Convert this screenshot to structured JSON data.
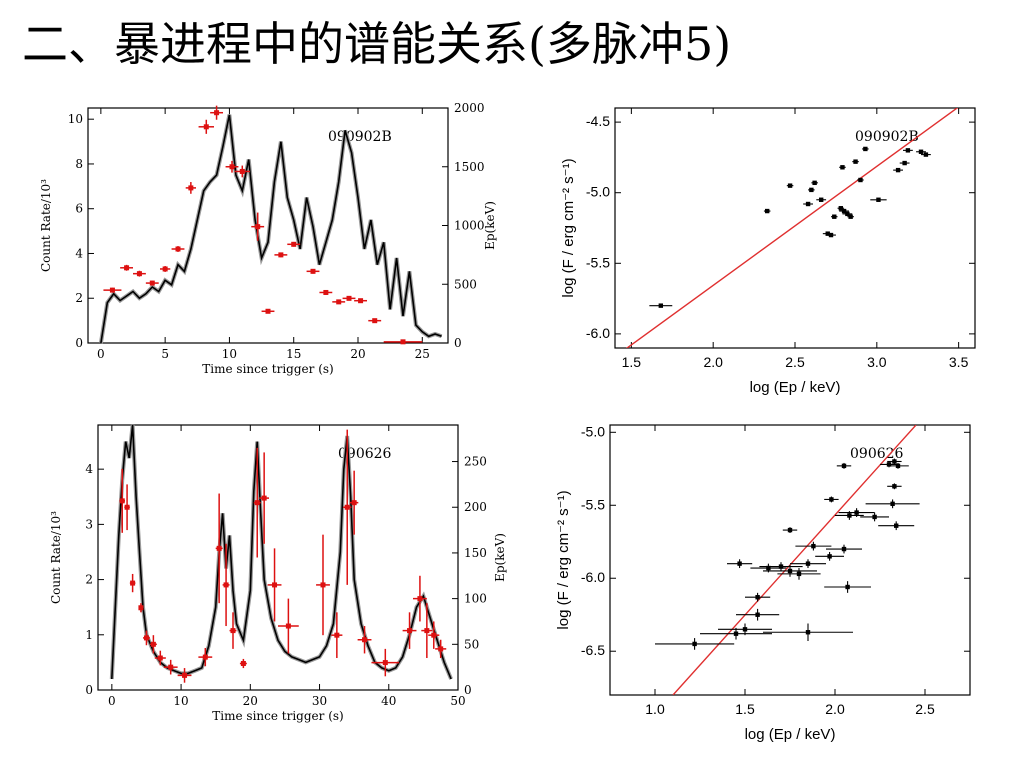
{
  "slide": {
    "title": "二、暴进程中的谱能关系(多脉冲5)"
  },
  "chart_data": [
    {
      "type": "line",
      "annotation": "090902B",
      "xlabel": "Time since trigger (s)",
      "ylabel": "Count Rate/10³",
      "y2label": "Ep(keV)",
      "xlim": [
        -1,
        27
      ],
      "ylim": [
        0,
        10.5
      ],
      "y2lim": [
        0,
        2000
      ],
      "xticks": [
        0,
        5,
        10,
        15,
        20,
        25
      ],
      "yticks": [
        0,
        2,
        4,
        6,
        8,
        10
      ],
      "y2ticks": [
        0,
        500,
        1000,
        1500,
        2000
      ],
      "lightcurve": {
        "t": [
          0,
          0.5,
          1,
          1.5,
          2,
          2.5,
          3,
          3.5,
          4,
          4.5,
          5,
          5.5,
          6,
          6.5,
          7,
          7.5,
          8,
          8.5,
          9,
          9.5,
          10,
          10.5,
          11,
          11.5,
          12,
          12.5,
          13,
          13.5,
          14,
          14.5,
          15,
          15.5,
          16,
          16.5,
          17,
          17.5,
          18,
          18.5,
          19,
          19.5,
          20,
          20.5,
          21,
          21.5,
          22,
          22.5,
          23,
          23.5,
          24,
          24.5,
          25,
          25.5,
          26,
          26.5
        ],
        "rate": [
          0,
          1.8,
          2.2,
          1.9,
          2.1,
          2.3,
          2,
          2.2,
          2.5,
          2.3,
          2.8,
          2.6,
          3.5,
          3.2,
          4.2,
          5.5,
          6.8,
          7.2,
          7.5,
          8.8,
          10.2,
          7.5,
          6.8,
          8.2,
          5.5,
          3.8,
          4.5,
          7.2,
          9,
          6.5,
          5.5,
          4.2,
          6.5,
          5.2,
          3.5,
          4.5,
          5.5,
          7.2,
          9.5,
          8.5,
          6.5,
          4.2,
          5.5,
          3.5,
          4.5,
          1.5,
          3.8,
          1.2,
          3.2,
          0.8,
          0.5,
          0.3,
          0.4,
          0.3
        ]
      },
      "ep_points": [
        {
          "t": 0.9,
          "ep": 450,
          "terr": 0.7,
          "eerr": 20
        },
        {
          "t": 2.0,
          "ep": 640,
          "terr": 0.5,
          "eerr": 25
        },
        {
          "t": 3.0,
          "ep": 590,
          "terr": 0.5,
          "eerr": 25
        },
        {
          "t": 4.0,
          "ep": 510,
          "terr": 0.5,
          "eerr": 20
        },
        {
          "t": 5.0,
          "ep": 630,
          "terr": 0.4,
          "eerr": 25
        },
        {
          "t": 6.0,
          "ep": 800,
          "terr": 0.5,
          "eerr": 25
        },
        {
          "t": 7.0,
          "ep": 1320,
          "terr": 0.4,
          "eerr": 50
        },
        {
          "t": 8.2,
          "ep": 1840,
          "terr": 0.6,
          "eerr": 60
        },
        {
          "t": 9.0,
          "ep": 1960,
          "terr": 0.5,
          "eerr": 60
        },
        {
          "t": 10.2,
          "ep": 1500,
          "terr": 0.5,
          "eerr": 50
        },
        {
          "t": 11.0,
          "ep": 1460,
          "terr": 0.6,
          "eerr": 50
        },
        {
          "t": 12.2,
          "ep": 990,
          "terr": 0.5,
          "eerr": 120
        },
        {
          "t": 13.0,
          "ep": 270,
          "terr": 0.5,
          "eerr": 15
        },
        {
          "t": 14.0,
          "ep": 750,
          "terr": 0.5,
          "eerr": 20
        },
        {
          "t": 15.0,
          "ep": 840,
          "terr": 0.5,
          "eerr": 20
        },
        {
          "t": 16.5,
          "ep": 610,
          "terr": 0.5,
          "eerr": 20
        },
        {
          "t": 17.5,
          "ep": 430,
          "terr": 0.5,
          "eerr": 20
        },
        {
          "t": 18.5,
          "ep": 350,
          "terr": 0.5,
          "eerr": 15
        },
        {
          "t": 19.3,
          "ep": 380,
          "terr": 0.5,
          "eerr": 15
        },
        {
          "t": 20.2,
          "ep": 360,
          "terr": 0.5,
          "eerr": 15
        },
        {
          "t": 21.3,
          "ep": 190,
          "terr": 0.5,
          "eerr": 10
        },
        {
          "t": 23.5,
          "ep": 10,
          "terr": 1.5,
          "eerr": 5
        }
      ]
    },
    {
      "type": "scatter",
      "annotation": "090902B",
      "xlabel": "log (Ep / keV)",
      "ylabel": "log (F / erg cm⁻² s⁻¹)",
      "xlim": [
        1.4,
        3.6
      ],
      "ylim": [
        -6.1,
        -4.4
      ],
      "xticks": [
        1.5,
        2.0,
        2.5,
        3.0,
        3.5
      ],
      "yticks": [
        -6.0,
        -5.5,
        -5.0,
        -4.5
      ],
      "fit_line": {
        "x": [
          1.45,
          3.55
        ],
        "y": [
          -6.12,
          -4.35
        ]
      },
      "points": [
        {
          "x": 1.68,
          "y": -5.8,
          "xerr": 0.07,
          "yerr": 0.01
        },
        {
          "x": 2.33,
          "y": -5.13,
          "xerr": 0.02,
          "yerr": 0.01
        },
        {
          "x": 2.47,
          "y": -4.95,
          "xerr": 0.02,
          "yerr": 0.01
        },
        {
          "x": 2.58,
          "y": -5.08,
          "xerr": 0.03,
          "yerr": 0.01
        },
        {
          "x": 2.6,
          "y": -4.98,
          "xerr": 0.02,
          "yerr": 0.01
        },
        {
          "x": 2.62,
          "y": -4.93,
          "xerr": 0.02,
          "yerr": 0.01
        },
        {
          "x": 2.66,
          "y": -5.05,
          "xerr": 0.03,
          "yerr": 0.01
        },
        {
          "x": 2.7,
          "y": -5.29,
          "xerr": 0.03,
          "yerr": 0.01
        },
        {
          "x": 2.72,
          "y": -5.3,
          "xerr": 0.03,
          "yerr": 0.01
        },
        {
          "x": 2.74,
          "y": -5.17,
          "xerr": 0.02,
          "yerr": 0.01
        },
        {
          "x": 2.78,
          "y": -5.11,
          "xerr": 0.02,
          "yerr": 0.01
        },
        {
          "x": 2.8,
          "y": -5.13,
          "xerr": 0.03,
          "yerr": 0.01
        },
        {
          "x": 2.82,
          "y": -5.15,
          "xerr": 0.03,
          "yerr": 0.01
        },
        {
          "x": 2.84,
          "y": -5.17,
          "xerr": 0.02,
          "yerr": 0.01
        },
        {
          "x": 2.79,
          "y": -4.82,
          "xerr": 0.02,
          "yerr": 0.01
        },
        {
          "x": 2.87,
          "y": -4.78,
          "xerr": 0.02,
          "yerr": 0.01
        },
        {
          "x": 2.9,
          "y": -4.91,
          "xerr": 0.02,
          "yerr": 0.01
        },
        {
          "x": 2.93,
          "y": -4.69,
          "xerr": 0.02,
          "yerr": 0.01
        },
        {
          "x": 3.01,
          "y": -5.05,
          "xerr": 0.05,
          "yerr": 0.01
        },
        {
          "x": 3.13,
          "y": -4.84,
          "xerr": 0.03,
          "yerr": 0.01
        },
        {
          "x": 3.17,
          "y": -4.79,
          "xerr": 0.03,
          "yerr": 0.01
        },
        {
          "x": 3.19,
          "y": -4.7,
          "xerr": 0.03,
          "yerr": 0.01
        },
        {
          "x": 3.27,
          "y": -4.71,
          "xerr": 0.03,
          "yerr": 0.01
        },
        {
          "x": 3.3,
          "y": -4.73,
          "xerr": 0.03,
          "yerr": 0.01
        }
      ]
    },
    {
      "type": "line",
      "annotation": "090626",
      "xlabel": "Time since trigger (s)",
      "ylabel": "Count Rate/10³",
      "y2label": "Ep(keV)",
      "xlim": [
        -2,
        50
      ],
      "ylim": [
        0,
        4.8
      ],
      "y2lim": [
        0,
        290
      ],
      "xticks": [
        0,
        10,
        20,
        30,
        40,
        50
      ],
      "yticks": [
        0,
        1,
        2,
        3,
        4
      ],
      "y2ticks": [
        0,
        50,
        100,
        150,
        200,
        250
      ],
      "lightcurve": {
        "t": [
          0,
          0.5,
          1,
          1.5,
          2,
          2.5,
          3,
          3.5,
          4,
          4.5,
          5,
          6,
          7,
          8,
          9,
          10,
          11,
          12,
          13,
          14,
          15,
          15.5,
          16,
          16.5,
          17,
          17.5,
          18,
          19,
          20,
          20.5,
          21,
          21.5,
          22,
          23,
          24,
          25,
          26,
          27,
          28,
          29,
          30,
          31,
          32,
          33,
          33.5,
          34,
          34.5,
          35,
          36,
          37,
          38,
          39,
          40,
          41,
          42,
          43,
          44,
          45,
          46,
          47,
          48,
          49
        ],
        "rate": [
          0.2,
          1.5,
          2.8,
          3.8,
          4.5,
          4.2,
          4.8,
          3.5,
          2.5,
          1.5,
          1.0,
          0.7,
          0.5,
          0.4,
          0.35,
          0.3,
          0.3,
          0.35,
          0.4,
          0.8,
          1.5,
          2.5,
          3.2,
          2.2,
          2.8,
          1.8,
          1.2,
          0.9,
          1.8,
          3.6,
          4.5,
          3.2,
          2.0,
          1.3,
          0.9,
          0.7,
          0.6,
          0.55,
          0.5,
          0.55,
          0.6,
          0.8,
          1.2,
          2.5,
          4.0,
          4.6,
          3.5,
          2.0,
          1.2,
          0.8,
          0.5,
          0.4,
          0.35,
          0.4,
          0.6,
          1.0,
          1.5,
          1.7,
          1.3,
          0.9,
          0.5,
          0.2
        ]
      },
      "ep_points": [
        {
          "t": 1.5,
          "ep": 207,
          "terr": 0.4,
          "eerr": 35
        },
        {
          "t": 2.2,
          "ep": 200,
          "terr": 0.4,
          "eerr": 25
        },
        {
          "t": 3.0,
          "ep": 117,
          "terr": 0.4,
          "eerr": 10
        },
        {
          "t": 4.2,
          "ep": 90,
          "terr": 0.3,
          "eerr": 5
        },
        {
          "t": 5.0,
          "ep": 57,
          "terr": 0.5,
          "eerr": 8
        },
        {
          "t": 6.0,
          "ep": 50,
          "terr": 0.5,
          "eerr": 10
        },
        {
          "t": 7.0,
          "ep": 35,
          "terr": 0.8,
          "eerr": 8
        },
        {
          "t": 8.5,
          "ep": 25,
          "terr": 1.0,
          "eerr": 8
        },
        {
          "t": 10.5,
          "ep": 16,
          "terr": 1.0,
          "eerr": 8
        },
        {
          "t": 13.5,
          "ep": 36,
          "terr": 1.0,
          "eerr": 10
        },
        {
          "t": 15.5,
          "ep": 155,
          "terr": 0.5,
          "eerr": 60
        },
        {
          "t": 16.5,
          "ep": 115,
          "terr": 0.5,
          "eerr": 45
        },
        {
          "t": 17.5,
          "ep": 65,
          "terr": 0.5,
          "eerr": 20
        },
        {
          "t": 19.0,
          "ep": 29,
          "terr": 0.5,
          "eerr": 5
        },
        {
          "t": 21.0,
          "ep": 205,
          "terr": 0.5,
          "eerr": 60
        },
        {
          "t": 22.0,
          "ep": 210,
          "terr": 0.7,
          "eerr": 50
        },
        {
          "t": 23.5,
          "ep": 115,
          "terr": 1.0,
          "eerr": 40
        },
        {
          "t": 25.5,
          "ep": 70,
          "terr": 1.5,
          "eerr": 30
        },
        {
          "t": 30.5,
          "ep": 115,
          "terr": 1.0,
          "eerr": 55
        },
        {
          "t": 32.5,
          "ep": 60,
          "terr": 0.8,
          "eerr": 25
        },
        {
          "t": 34.0,
          "ep": 200,
          "terr": 0.6,
          "eerr": 85
        },
        {
          "t": 35.0,
          "ep": 205,
          "terr": 0.6,
          "eerr": 35
        },
        {
          "t": 36.5,
          "ep": 55,
          "terr": 1.0,
          "eerr": 15
        },
        {
          "t": 39.5,
          "ep": 30,
          "terr": 2.0,
          "eerr": 15
        },
        {
          "t": 43.0,
          "ep": 65,
          "terr": 1.0,
          "eerr": 20
        },
        {
          "t": 44.5,
          "ep": 100,
          "terr": 1.0,
          "eerr": 25
        },
        {
          "t": 45.5,
          "ep": 65,
          "terr": 0.8,
          "eerr": 30
        },
        {
          "t": 46.5,
          "ep": 60,
          "terr": 0.8,
          "eerr": 15
        },
        {
          "t": 47.5,
          "ep": 45,
          "terr": 0.8,
          "eerr": 10
        }
      ]
    },
    {
      "type": "scatter",
      "annotation": "090626",
      "xlabel": "log (Ep / keV)",
      "ylabel": "log (F / erg cm⁻² s⁻¹)",
      "xlim": [
        0.75,
        2.75
      ],
      "ylim": [
        -6.8,
        -4.95
      ],
      "xticks": [
        1.0,
        1.5,
        2.0,
        2.5
      ],
      "yticks": [
        -6.5,
        -6.0,
        -5.5,
        -5.0
      ],
      "fit_line": {
        "x": [
          1.1,
          2.45
        ],
        "y": [
          -6.8,
          -4.95
        ]
      },
      "points": [
        {
          "x": 1.22,
          "y": -6.45,
          "xerr": 0.22,
          "yerr": 0.04
        },
        {
          "x": 1.45,
          "y": -6.38,
          "xerr": 0.2,
          "yerr": 0.04
        },
        {
          "x": 1.5,
          "y": -6.35,
          "xerr": 0.15,
          "yerr": 0.04
        },
        {
          "x": 1.57,
          "y": -6.25,
          "xerr": 0.12,
          "yerr": 0.04
        },
        {
          "x": 1.57,
          "y": -6.13,
          "xerr": 0.07,
          "yerr": 0.03
        },
        {
          "x": 1.85,
          "y": -6.37,
          "xerr": 0.25,
          "yerr": 0.06
        },
        {
          "x": 1.47,
          "y": -5.9,
          "xerr": 0.07,
          "yerr": 0.03
        },
        {
          "x": 1.63,
          "y": -5.93,
          "xerr": 0.1,
          "yerr": 0.03
        },
        {
          "x": 1.7,
          "y": -5.92,
          "xerr": 0.12,
          "yerr": 0.03
        },
        {
          "x": 1.75,
          "y": -5.95,
          "xerr": 0.15,
          "yerr": 0.04
        },
        {
          "x": 1.8,
          "y": -5.97,
          "xerr": 0.12,
          "yerr": 0.04
        },
        {
          "x": 1.85,
          "y": -5.9,
          "xerr": 0.1,
          "yerr": 0.03
        },
        {
          "x": 1.88,
          "y": -5.78,
          "xerr": 0.1,
          "yerr": 0.03
        },
        {
          "x": 1.97,
          "y": -5.85,
          "xerr": 0.08,
          "yerr": 0.03
        },
        {
          "x": 2.05,
          "y": -5.8,
          "xerr": 0.1,
          "yerr": 0.03
        },
        {
          "x": 2.07,
          "y": -6.06,
          "xerr": 0.13,
          "yerr": 0.04
        },
        {
          "x": 1.75,
          "y": -5.67,
          "xerr": 0.04,
          "yerr": 0.02
        },
        {
          "x": 1.98,
          "y": -5.46,
          "xerr": 0.04,
          "yerr": 0.02
        },
        {
          "x": 2.08,
          "y": -5.57,
          "xerr": 0.08,
          "yerr": 0.03
        },
        {
          "x": 2.12,
          "y": -5.55,
          "xerr": 0.1,
          "yerr": 0.03
        },
        {
          "x": 2.22,
          "y": -5.58,
          "xerr": 0.08,
          "yerr": 0.03
        },
        {
          "x": 2.32,
          "y": -5.49,
          "xerr": 0.15,
          "yerr": 0.03
        },
        {
          "x": 2.34,
          "y": -5.64,
          "xerr": 0.1,
          "yerr": 0.03
        },
        {
          "x": 2.05,
          "y": -5.23,
          "xerr": 0.04,
          "yerr": 0.02
        },
        {
          "x": 2.3,
          "y": -5.22,
          "xerr": 0.05,
          "yerr": 0.02
        },
        {
          "x": 2.33,
          "y": -5.2,
          "xerr": 0.04,
          "yerr": 0.02
        },
        {
          "x": 2.35,
          "y": -5.23,
          "xerr": 0.06,
          "yerr": 0.02
        },
        {
          "x": 2.33,
          "y": -5.37,
          "xerr": 0.04,
          "yerr": 0.02
        }
      ]
    }
  ]
}
